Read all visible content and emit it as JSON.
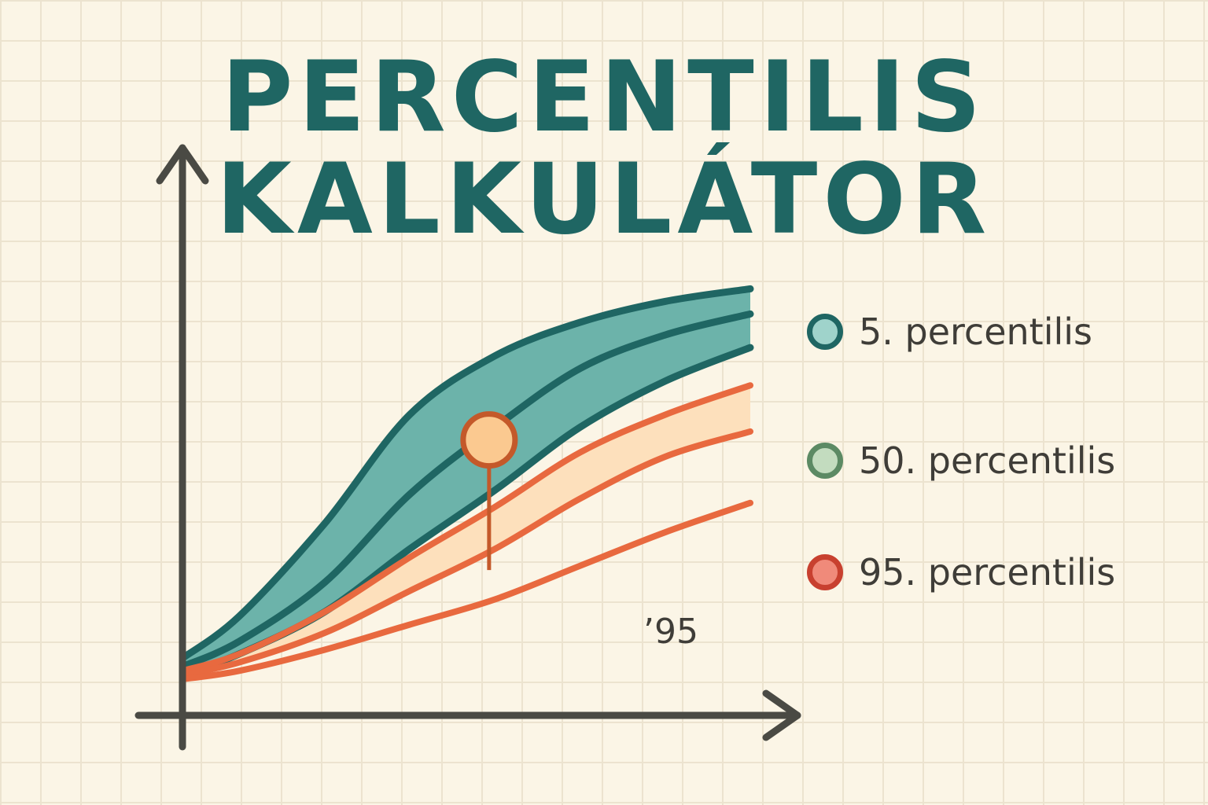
{
  "title_line1": "Percentilis",
  "title_line2": "kalkulátor",
  "legend": [
    {
      "label": "5. percentilis",
      "fill": "#9fd3cb",
      "border": "#1f6663"
    },
    {
      "label": "50. percentilis",
      "fill": "#c3dcbf",
      "border": "#5c8a64"
    },
    {
      "label": "95. percentilis",
      "fill": "#f08a7a",
      "border": "#c8402f"
    }
  ],
  "annotation": "’95",
  "colors": {
    "teal_band": "#6cb3aa",
    "teal_line": "#1f6663",
    "orange_band": "#fde0bc",
    "orange_line": "#e8693f",
    "marker_fill": "#fbc990",
    "marker_border": "#c4592a",
    "axis": "#4a4a44"
  },
  "chart_data": {
    "type": "line",
    "x_range": [
      0,
      100
    ],
    "y_range": [
      0,
      100
    ],
    "series": [
      {
        "x": [
          0,
          10,
          25,
          40,
          55,
          70,
          85,
          100
        ],
        "y": [
          8,
          18,
          40,
          66,
          80,
          88,
          93,
          96
        ]
      },
      {
        "x": [
          0,
          10,
          25,
          40,
          55,
          70,
          85,
          100
        ],
        "y": [
          6,
          12,
          26,
          47,
          63,
          77,
          85,
          90
        ]
      },
      {
        "x": [
          0,
          10,
          25,
          40,
          55,
          70,
          85,
          100
        ],
        "y": [
          4,
          9,
          19,
          34,
          48,
          63,
          74,
          82
        ]
      },
      {
        "x": [
          0,
          10,
          25,
          40,
          55,
          70,
          85,
          100
        ],
        "y": [
          5,
          9,
          19,
          32,
          44,
          57,
          66,
          73
        ]
      },
      {
        "x": [
          0,
          10,
          25,
          40,
          55,
          70,
          85,
          100
        ],
        "y": [
          4,
          7,
          14,
          24,
          34,
          46,
          56,
          62
        ]
      },
      {
        "x": [
          0,
          10,
          25,
          40,
          55,
          70,
          85,
          100
        ],
        "y": [
          3,
          5,
          10,
          16,
          22,
          30,
          38,
          45
        ]
      }
    ],
    "bands": [
      {
        "between": [
          0,
          2
        ],
        "color": "teal"
      },
      {
        "between": [
          3,
          4
        ],
        "color": "orange"
      }
    ],
    "marker": {
      "x": 54,
      "y": 60
    }
  }
}
